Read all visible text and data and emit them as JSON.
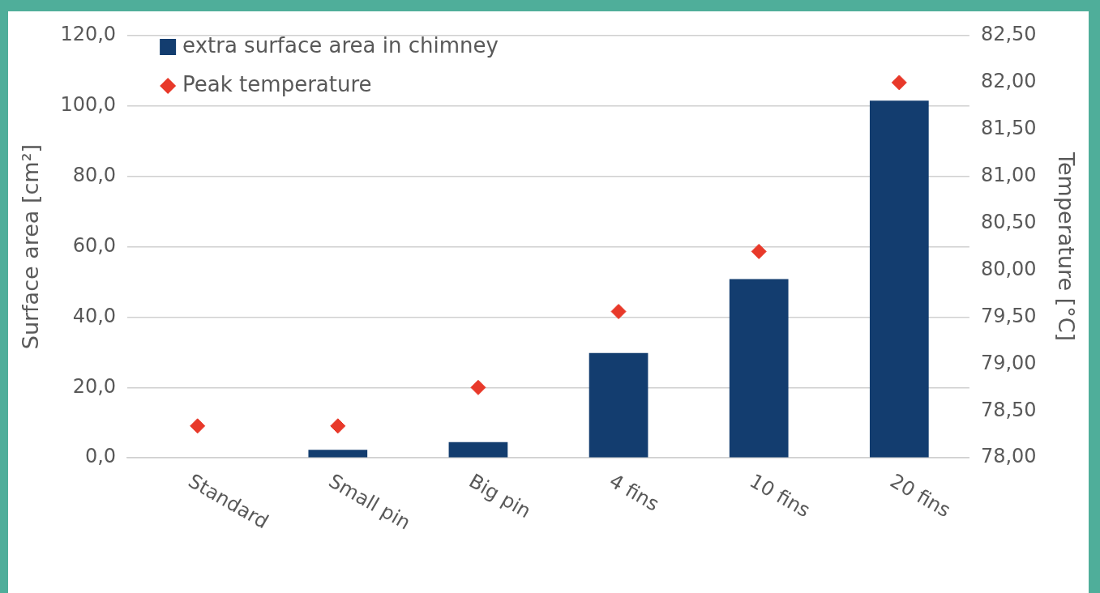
{
  "chart_data": {
    "type": "bar",
    "categories": [
      "Standard",
      "Small pin",
      "Big pin",
      "4 fins",
      "10 fins",
      "20 fins"
    ],
    "ylabel": "Surface area [cm²]",
    "y2label": "Temperature [°C]",
    "series": [
      {
        "name": "extra surface area in chimney",
        "color": "#133d6f",
        "values": [
          0,
          2.3,
          4.5,
          29.8,
          50.8,
          101.5
        ]
      },
      {
        "name": "Peak temperature",
        "type": "scatter",
        "axis": "y2",
        "marker": "diamond",
        "color": "#e8392a",
        "values": [
          78.34,
          78.34,
          78.75,
          79.56,
          80.2,
          82.0
        ]
      }
    ],
    "ylim": [
      0,
      120
    ],
    "yticks": [
      {
        "value": 0,
        "label": "0,0"
      },
      {
        "value": 20,
        "label": "20,0"
      },
      {
        "value": 40,
        "label": "40,0"
      },
      {
        "value": 60,
        "label": "60,0"
      },
      {
        "value": 80,
        "label": "80,0"
      },
      {
        "value": 100,
        "label": "100,0"
      },
      {
        "value": 120,
        "label": "120,0"
      }
    ],
    "y2lim": [
      78,
      82.5
    ],
    "y2ticks": [
      {
        "value": 78,
        "label": "78,00"
      },
      {
        "value": 78.5,
        "label": "78,50"
      },
      {
        "value": 79,
        "label": "79,00"
      },
      {
        "value": 79.5,
        "label": "79,50"
      },
      {
        "value": 80,
        "label": "80,00"
      },
      {
        "value": 80.5,
        "label": "80,50"
      },
      {
        "value": 81,
        "label": "81,00"
      },
      {
        "value": 81.5,
        "label": "81,50"
      },
      {
        "value": 82,
        "label": "82,00"
      },
      {
        "value": 82.5,
        "label": "82,50"
      }
    ],
    "grid": "y",
    "legend": "top left"
  }
}
